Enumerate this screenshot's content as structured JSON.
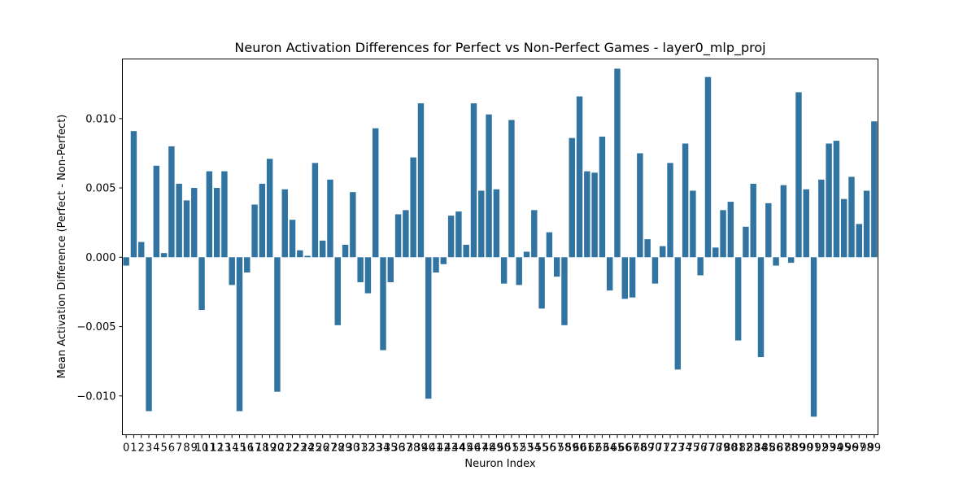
{
  "chart_data": {
    "type": "bar",
    "title": "Neuron Activation Differences for Perfect vs Non-Perfect Games - layer0_mlp_proj",
    "xlabel": "Neuron Index",
    "ylabel": "Mean Activation Difference (Perfect - Non-Perfect)",
    "ylim": [
      -0.0128,
      0.0143
    ],
    "yticks": [
      -0.01,
      -0.005,
      0.0,
      0.005,
      0.01
    ],
    "ytick_labels": [
      "−0.010",
      "−0.005",
      "0.000",
      "0.005",
      "0.010"
    ],
    "grid": false,
    "color": "#3274a1",
    "categories": [
      "0",
      "1",
      "2",
      "3",
      "4",
      "5",
      "6",
      "7",
      "8",
      "9",
      "10",
      "11",
      "12",
      "13",
      "14",
      "15",
      "16",
      "17",
      "18",
      "19",
      "20",
      "21",
      "22",
      "23",
      "24",
      "25",
      "26",
      "27",
      "28",
      "29",
      "30",
      "31",
      "32",
      "33",
      "34",
      "35",
      "36",
      "37",
      "38",
      "39",
      "40",
      "41",
      "42",
      "43",
      "44",
      "45",
      "46",
      "47",
      "48",
      "49",
      "50",
      "51",
      "52",
      "53",
      "54",
      "55",
      "56",
      "57",
      "58",
      "59",
      "60",
      "61",
      "62",
      "63",
      "64",
      "65",
      "66",
      "67",
      "68",
      "69",
      "70",
      "71",
      "72",
      "73",
      "74",
      "75",
      "76",
      "77",
      "78",
      "79",
      "80",
      "81",
      "82",
      "83",
      "84",
      "85",
      "86",
      "87",
      "88",
      "89",
      "90",
      "91",
      "92",
      "93",
      "94",
      "95",
      "96",
      "97",
      "98",
      "99"
    ],
    "values": [
      -0.0006,
      0.0091,
      0.0011,
      -0.0111,
      0.0066,
      0.0003,
      0.008,
      0.0053,
      0.0041,
      0.005,
      -0.0038,
      0.0062,
      0.005,
      0.0062,
      -0.002,
      -0.0111,
      -0.0011,
      0.0038,
      0.0053,
      0.0071,
      -0.0097,
      0.0049,
      0.0027,
      0.0005,
      0.0001,
      0.0068,
      0.0012,
      0.0056,
      -0.0049,
      0.0009,
      0.0047,
      -0.0018,
      -0.0026,
      0.0093,
      -0.0067,
      -0.0018,
      0.0031,
      0.0034,
      0.0072,
      0.0111,
      -0.0102,
      -0.0011,
      -0.0005,
      0.003,
      0.0033,
      0.0009,
      0.0111,
      0.0048,
      0.0103,
      0.0049,
      -0.0019,
      0.0099,
      -0.002,
      0.0004,
      0.0034,
      -0.0037,
      0.0018,
      -0.0014,
      -0.0049,
      0.0086,
      0.0116,
      0.0062,
      0.0061,
      0.0087,
      -0.0024,
      0.0136,
      -0.003,
      -0.0029,
      0.0075,
      0.0013,
      -0.0019,
      0.0008,
      0.0068,
      -0.0081,
      0.0082,
      0.0048,
      -0.0013,
      0.013,
      0.0007,
      0.0034,
      0.004,
      -0.006,
      0.0022,
      0.0053,
      -0.0072,
      0.0039,
      -0.0006,
      0.0052,
      -0.0004,
      0.0119,
      0.0049,
      -0.0115,
      0.0056,
      0.0082,
      0.0084,
      0.0042,
      0.0058,
      0.0024,
      0.0048,
      0.0098
    ]
  }
}
